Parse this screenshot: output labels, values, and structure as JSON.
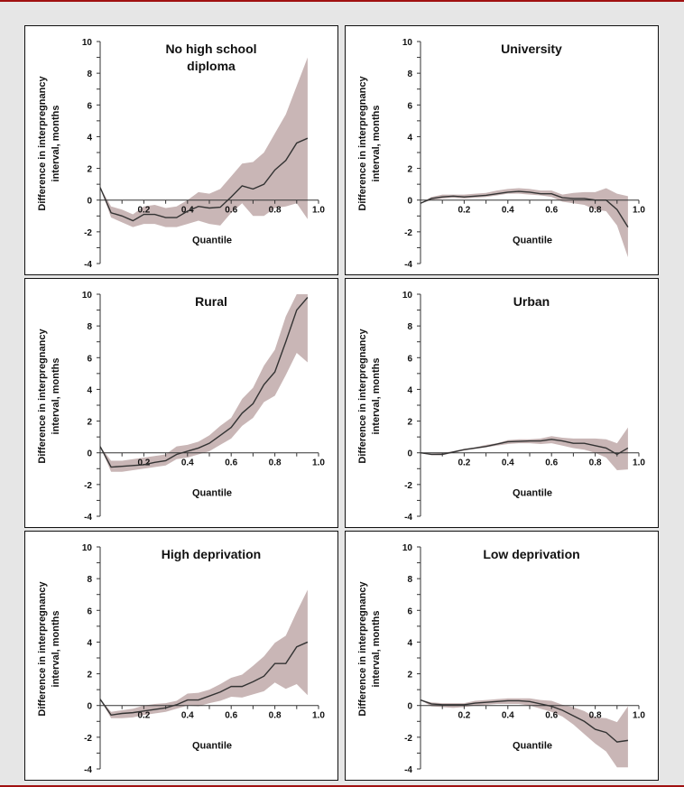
{
  "colors": {
    "band": "#c9b6b6",
    "line": "#333333",
    "accent": "#a01010"
  },
  "chart_data": [
    {
      "type": "line",
      "title": "No high school diploma",
      "title_lines": [
        "No high school",
        "diploma"
      ],
      "xlabel": "Quantile",
      "ylabel_lines": [
        "Difference in interpregnancy",
        "interval, months"
      ],
      "xlim": [
        0,
        1
      ],
      "ylim": [
        -4,
        10
      ],
      "xticks": [
        "0.2",
        "0.4",
        "0.6",
        "0.8",
        "1.0"
      ],
      "yticks": [
        "10",
        "8",
        "6",
        "4",
        "2",
        "0",
        "-2",
        "-4"
      ],
      "x": [
        0,
        0.05,
        0.1,
        0.15,
        0.2,
        0.25,
        0.3,
        0.35,
        0.4,
        0.45,
        0.5,
        0.55,
        0.6,
        0.65,
        0.7,
        0.75,
        0.8,
        0.85,
        0.9,
        0.95
      ],
      "estimate": [
        0.8,
        -0.8,
        -1.0,
        -1.3,
        -0.9,
        -0.9,
        -1.1,
        -1.1,
        -0.7,
        -0.4,
        -0.5,
        -0.45,
        0.2,
        0.9,
        0.7,
        1.0,
        1.9,
        2.5,
        3.6,
        3.9
      ],
      "lower": [
        0.8,
        -1.1,
        -1.4,
        -1.7,
        -1.5,
        -1.5,
        -1.7,
        -1.7,
        -1.5,
        -1.3,
        -1.5,
        -1.6,
        -0.8,
        -0.2,
        -1.0,
        -1.0,
        -0.5,
        -0.4,
        -0.2,
        -1.2
      ],
      "upper": [
        0.8,
        -0.4,
        -0.6,
        -0.9,
        -0.4,
        -0.3,
        -0.5,
        -0.4,
        0.0,
        0.5,
        0.4,
        0.7,
        1.5,
        2.3,
        2.4,
        3.0,
        4.2,
        5.4,
        7.2,
        9.0
      ]
    },
    {
      "type": "line",
      "title": "University",
      "title_lines": [
        "University"
      ],
      "xlabel": "Quantile",
      "ylabel_lines": [
        "Difference in interpregnancy",
        "interval, months"
      ],
      "xlim": [
        0,
        1
      ],
      "ylim": [
        -4,
        10
      ],
      "xticks": [
        "0.2",
        "0.4",
        "0.6",
        "0.8",
        "1.0"
      ],
      "yticks": [
        "10",
        "8",
        "6",
        "4",
        "2",
        "0",
        "-2",
        "-4"
      ],
      "x": [
        0,
        0.05,
        0.1,
        0.15,
        0.2,
        0.25,
        0.3,
        0.35,
        0.4,
        0.45,
        0.5,
        0.55,
        0.6,
        0.65,
        0.7,
        0.75,
        0.8,
        0.85,
        0.9,
        0.95
      ],
      "estimate": [
        -0.2,
        0.1,
        0.2,
        0.25,
        0.2,
        0.25,
        0.3,
        0.4,
        0.5,
        0.55,
        0.5,
        0.4,
        0.4,
        0.15,
        0.1,
        0.1,
        0,
        0,
        -0.6,
        -1.7
      ],
      "lower": [
        -0.2,
        0,
        0.1,
        0.15,
        0.1,
        0.15,
        0.2,
        0.3,
        0.4,
        0.4,
        0.35,
        0.3,
        0.2,
        -0.1,
        -0.2,
        -0.3,
        -0.6,
        -0.7,
        -1.6,
        -3.6
      ],
      "upper": [
        -0.2,
        0.2,
        0.35,
        0.35,
        0.35,
        0.4,
        0.45,
        0.6,
        0.7,
        0.75,
        0.7,
        0.6,
        0.6,
        0.35,
        0.45,
        0.5,
        0.5,
        0.75,
        0.4,
        0.25
      ]
    },
    {
      "type": "line",
      "title": "Rural",
      "title_lines": [
        "Rural"
      ],
      "xlabel": "Quantile",
      "ylabel_lines": [
        "Difference in interpregnancy",
        "interval, months"
      ],
      "xlim": [
        0,
        1
      ],
      "ylim": [
        -4,
        10
      ],
      "xticks": [
        "0.2",
        "0.4",
        "0.6",
        "0.8",
        "1.0"
      ],
      "yticks": [
        "10",
        "8",
        "6",
        "4",
        "2",
        "0",
        "-2",
        "-4"
      ],
      "x": [
        0,
        0.05,
        0.1,
        0.15,
        0.2,
        0.25,
        0.3,
        0.35,
        0.4,
        0.45,
        0.5,
        0.55,
        0.6,
        0.65,
        0.7,
        0.75,
        0.8,
        0.85,
        0.9,
        0.95
      ],
      "estimate": [
        0.4,
        -0.9,
        -0.85,
        -0.8,
        -0.75,
        -0.6,
        -0.5,
        -0.1,
        0.1,
        0.3,
        0.6,
        1.1,
        1.6,
        2.5,
        3.1,
        4.3,
        5.1,
        7.0,
        9.0,
        9.8
      ],
      "lower": [
        0.4,
        -1.2,
        -1.2,
        -1.1,
        -1.0,
        -0.9,
        -0.8,
        -0.4,
        -0.3,
        -0.1,
        0.1,
        0.5,
        0.9,
        1.7,
        2.2,
        3.2,
        3.6,
        4.9,
        6.3,
        5.7
      ],
      "upper": [
        0.4,
        -0.5,
        -0.5,
        -0.4,
        -0.3,
        -0.2,
        -0.1,
        0.4,
        0.5,
        0.7,
        1.1,
        1.7,
        2.2,
        3.4,
        4.1,
        5.5,
        6.5,
        8.6,
        10,
        10
      ]
    },
    {
      "type": "line",
      "title": "Urban",
      "title_lines": [
        "Urban"
      ],
      "xlabel": "Quantile",
      "ylabel_lines": [
        "Difference in interpregnancy",
        "interval, months"
      ],
      "xlim": [
        0,
        1
      ],
      "ylim": [
        -4,
        10
      ],
      "xticks": [
        "0.2",
        "0.4",
        "0.6",
        "0.8",
        "1.0"
      ],
      "yticks": [
        "10",
        "8",
        "6",
        "4",
        "2",
        "0",
        "-2",
        "-4"
      ],
      "x": [
        0,
        0.05,
        0.1,
        0.15,
        0.2,
        0.25,
        0.3,
        0.35,
        0.4,
        0.45,
        0.5,
        0.55,
        0.6,
        0.65,
        0.7,
        0.75,
        0.8,
        0.85,
        0.9,
        0.95
      ],
      "estimate": [
        0,
        -0.1,
        -0.1,
        0.05,
        0.2,
        0.3,
        0.4,
        0.55,
        0.7,
        0.72,
        0.75,
        0.75,
        0.85,
        0.75,
        0.6,
        0.6,
        0.45,
        0.3,
        -0.1,
        0.3
      ],
      "lower": [
        0,
        -0.15,
        -0.15,
        0,
        0.15,
        0.25,
        0.35,
        0.45,
        0.55,
        0.6,
        0.6,
        0.55,
        0.6,
        0.45,
        0.3,
        0.2,
        0,
        -0.3,
        -1.1,
        -1.05
      ],
      "upper": [
        0,
        -0.05,
        0,
        0.1,
        0.25,
        0.35,
        0.5,
        0.6,
        0.8,
        0.85,
        0.85,
        0.9,
        1.05,
        0.95,
        0.9,
        0.9,
        0.9,
        0.85,
        0.6,
        1.6
      ]
    },
    {
      "type": "line",
      "title": "High deprivation",
      "title_lines": [
        "High deprivation"
      ],
      "xlabel": "Quantile",
      "ylabel_lines": [
        "Difference in interpregnancy",
        "interval, months"
      ],
      "xlim": [
        0,
        1
      ],
      "ylim": [
        -4,
        10
      ],
      "xticks": [
        "0.2",
        "0.4",
        "0.6",
        "0.8",
        "1.0"
      ],
      "yticks": [
        "10",
        "8",
        "6",
        "4",
        "2",
        "0",
        "-2",
        "-4"
      ],
      "x": [
        0,
        0.05,
        0.1,
        0.15,
        0.2,
        0.25,
        0.3,
        0.35,
        0.4,
        0.45,
        0.5,
        0.55,
        0.6,
        0.65,
        0.7,
        0.75,
        0.8,
        0.85,
        0.9,
        0.95
      ],
      "estimate": [
        0.4,
        -0.6,
        -0.5,
        -0.45,
        -0.35,
        -0.25,
        -0.15,
        0.05,
        0.35,
        0.35,
        0.6,
        0.85,
        1.2,
        1.2,
        1.5,
        1.85,
        2.65,
        2.65,
        3.7,
        4.0
      ],
      "lower": [
        0.4,
        -0.8,
        -0.8,
        -0.75,
        -0.6,
        -0.5,
        -0.4,
        -0.2,
        0,
        -0.05,
        0.15,
        0.3,
        0.55,
        0.5,
        0.7,
        0.9,
        1.45,
        1.05,
        1.35,
        0.65
      ],
      "upper": [
        0.4,
        -0.4,
        -0.3,
        -0.2,
        0,
        0.1,
        0.15,
        0.3,
        0.75,
        0.8,
        1.0,
        1.35,
        1.75,
        1.95,
        2.5,
        3.1,
        3.95,
        4.4,
        5.9,
        7.3
      ]
    },
    {
      "type": "line",
      "title": "Low deprivation",
      "title_lines": [
        "Low deprivation"
      ],
      "xlabel": "Quantile",
      "ylabel_lines": [
        "Difference in interpregnancy",
        "interval, months"
      ],
      "xlim": [
        0,
        1
      ],
      "ylim": [
        -4,
        10
      ],
      "xticks": [
        "0.2",
        "0.4",
        "0.6",
        "0.8",
        "1.0"
      ],
      "yticks": [
        "10",
        "8",
        "6",
        "4",
        "2",
        "0",
        "-2",
        "-4"
      ],
      "x": [
        0,
        0.05,
        0.1,
        0.15,
        0.2,
        0.25,
        0.3,
        0.35,
        0.4,
        0.45,
        0.5,
        0.55,
        0.6,
        0.65,
        0.7,
        0.75,
        0.8,
        0.85,
        0.9,
        0.95
      ],
      "estimate": [
        0.35,
        0.1,
        0.05,
        0.05,
        0.05,
        0.15,
        0.2,
        0.25,
        0.3,
        0.3,
        0.25,
        0.1,
        -0.05,
        -0.3,
        -0.65,
        -1.0,
        -1.5,
        -1.7,
        -2.3,
        -2.2
      ],
      "lower": [
        0.35,
        -0.05,
        -0.1,
        -0.15,
        -0.1,
        0,
        0.05,
        0.1,
        0.1,
        0.1,
        0.0,
        -0.2,
        -0.4,
        -0.7,
        -1.2,
        -1.8,
        -2.4,
        -2.9,
        -3.9,
        -3.9
      ],
      "upper": [
        0.35,
        0.2,
        0.15,
        0.15,
        0.15,
        0.3,
        0.35,
        0.4,
        0.45,
        0.45,
        0.45,
        0.35,
        0.3,
        0.05,
        -0.1,
        -0.35,
        -0.75,
        -0.8,
        -1.05,
        -0.05
      ]
    }
  ]
}
